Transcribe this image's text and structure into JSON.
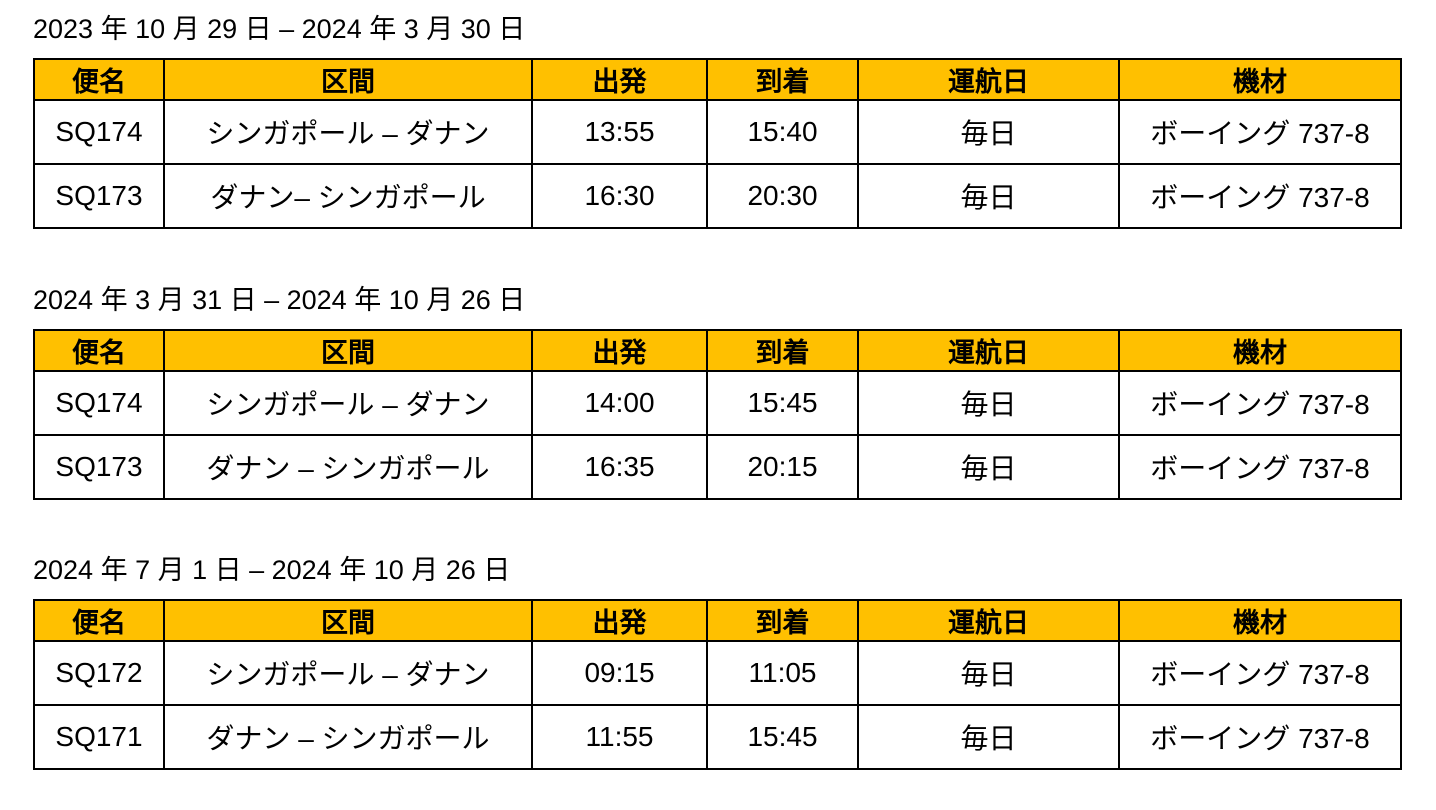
{
  "colors": {
    "header_bg": "#ffc000",
    "border": "#000000",
    "text": "#000000"
  },
  "sections": [
    {
      "title": "2023 年 10 月 29 日 – 2024 年 3 月 30 日",
      "headers": [
        "便名",
        "区間",
        "出発",
        "到着",
        "運航日",
        "機材"
      ],
      "rows": [
        [
          "SQ174",
          "シンガポール – ダナン",
          "13:55",
          "15:40",
          "毎日",
          "ボーイング 737-8"
        ],
        [
          "SQ173",
          "ダナン– シンガポール",
          "16:30",
          "20:30",
          "毎日",
          "ボーイング 737-8"
        ]
      ]
    },
    {
      "title": "2024 年 3 月 31 日 – 2024 年 10 月 26 日",
      "headers": [
        "便名",
        "区間",
        "出発",
        "到着",
        "運航日",
        "機材"
      ],
      "rows": [
        [
          "SQ174",
          "シンガポール – ダナン",
          "14:00",
          "15:45",
          "毎日",
          "ボーイング 737-8"
        ],
        [
          "SQ173",
          "ダナン – シンガポール",
          "16:35",
          "20:15",
          "毎日",
          "ボーイング 737-8"
        ]
      ]
    },
    {
      "title": "2024 年 7 月 1 日 – 2024 年 10 月 26 日",
      "headers": [
        "便名",
        "区間",
        "出発",
        "到着",
        "運航日",
        "機材"
      ],
      "rows": [
        [
          "SQ172",
          "シンガポール – ダナン",
          "09:15",
          "11:05",
          "毎日",
          "ボーイング 737-8"
        ],
        [
          "SQ171",
          "ダナン – シンガポール",
          "11:55",
          "15:45",
          "毎日",
          "ボーイング 737-8"
        ]
      ]
    }
  ]
}
